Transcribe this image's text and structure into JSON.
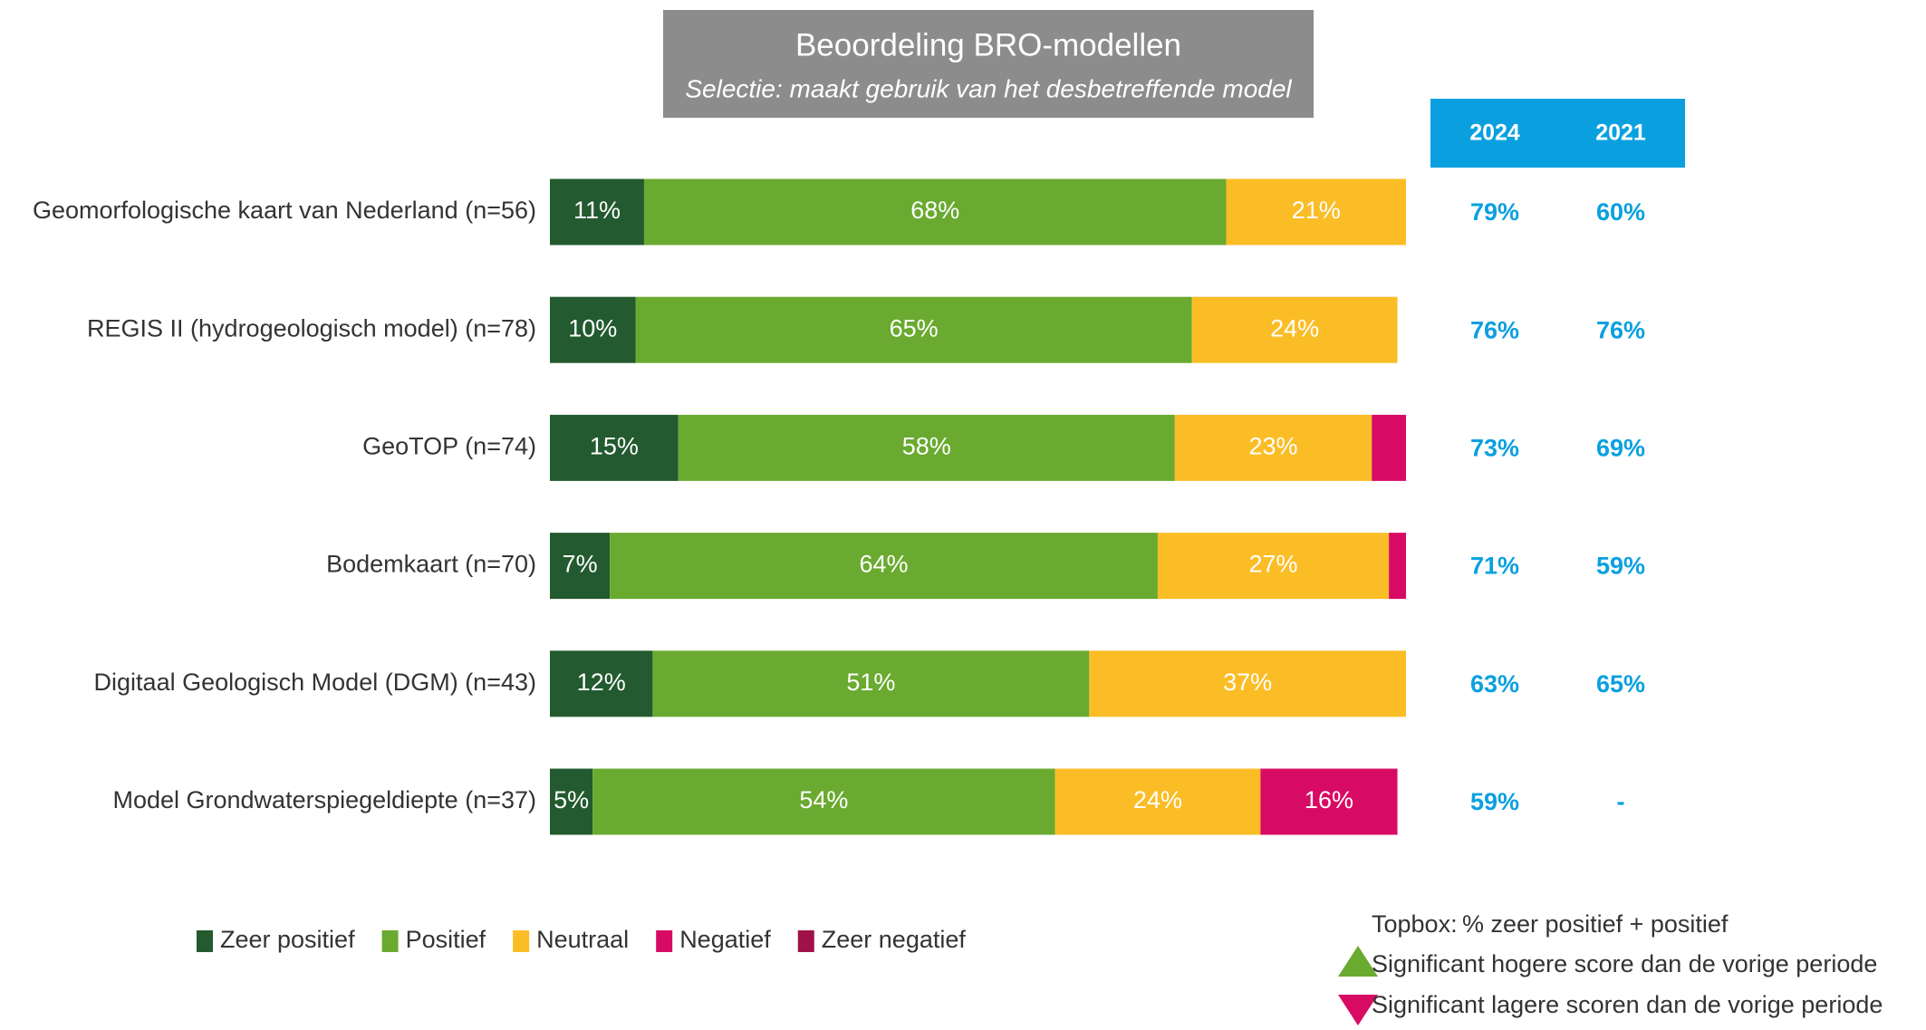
{
  "chart_data": {
    "type": "stacked-bar-horizontal",
    "title": "Beoordeling BRO-modellen",
    "subtitle": "Selectie: maakt gebruik van het desbetreffende model",
    "categories": [
      "Geomorfologische kaart van Nederland (n=56)",
      "REGIS II (hydrogeologisch model) (n=78)",
      "GeoTOP (n=74)",
      "Bodemkaart (n=70)",
      "Digitaal Geologisch Model (DGM) (n=43)",
      "Model Grondwaterspiegeldiepte (n=37)"
    ],
    "xlim": [
      0,
      100
    ],
    "series": [
      {
        "name": "Zeer positief",
        "color": "#235a2f",
        "values": [
          11,
          10,
          15,
          7,
          12,
          5
        ],
        "value_labels": [
          "11%",
          "10%",
          "15%",
          "7%",
          "12%",
          "5%"
        ]
      },
      {
        "name": "Positief",
        "color": "#6aaa30",
        "values": [
          68,
          65,
          58,
          64,
          51,
          54
        ],
        "value_labels": [
          "68%",
          "65%",
          "58%",
          "64%",
          "51%",
          "54%"
        ]
      },
      {
        "name": "Neutraal",
        "color": "#fbbd26",
        "values": [
          21,
          24,
          23,
          27,
          37,
          24
        ],
        "value_labels": [
          "21%",
          "24%",
          "23%",
          "27%",
          "37%",
          "24%"
        ]
      },
      {
        "name": "Negatief",
        "color": "#d80b64",
        "values": [
          0,
          0,
          4,
          2,
          0,
          16
        ],
        "value_labels": [
          null,
          null,
          null,
          null,
          null,
          "16%"
        ]
      },
      {
        "name": "Zeer negatief",
        "color": "#a0114a",
        "values": [
          0,
          0,
          0,
          0,
          0,
          0
        ]
      }
    ]
  },
  "topbox": {
    "headers": [
      "2024",
      "2021"
    ],
    "rows": [
      [
        "79%",
        "60%"
      ],
      [
        "76%",
        "76%"
      ],
      [
        "73%",
        "69%"
      ],
      [
        "71%",
        "59%"
      ],
      [
        "63%",
        "65%"
      ],
      [
        "59%",
        "-"
      ]
    ]
  },
  "notes": {
    "topbox_label": "Topbox:",
    "topbox_text": "% zeer positief + positief",
    "up": "Significant hogere score dan de vorige periode",
    "down": "Significant lagere scoren dan de vorige periode"
  }
}
